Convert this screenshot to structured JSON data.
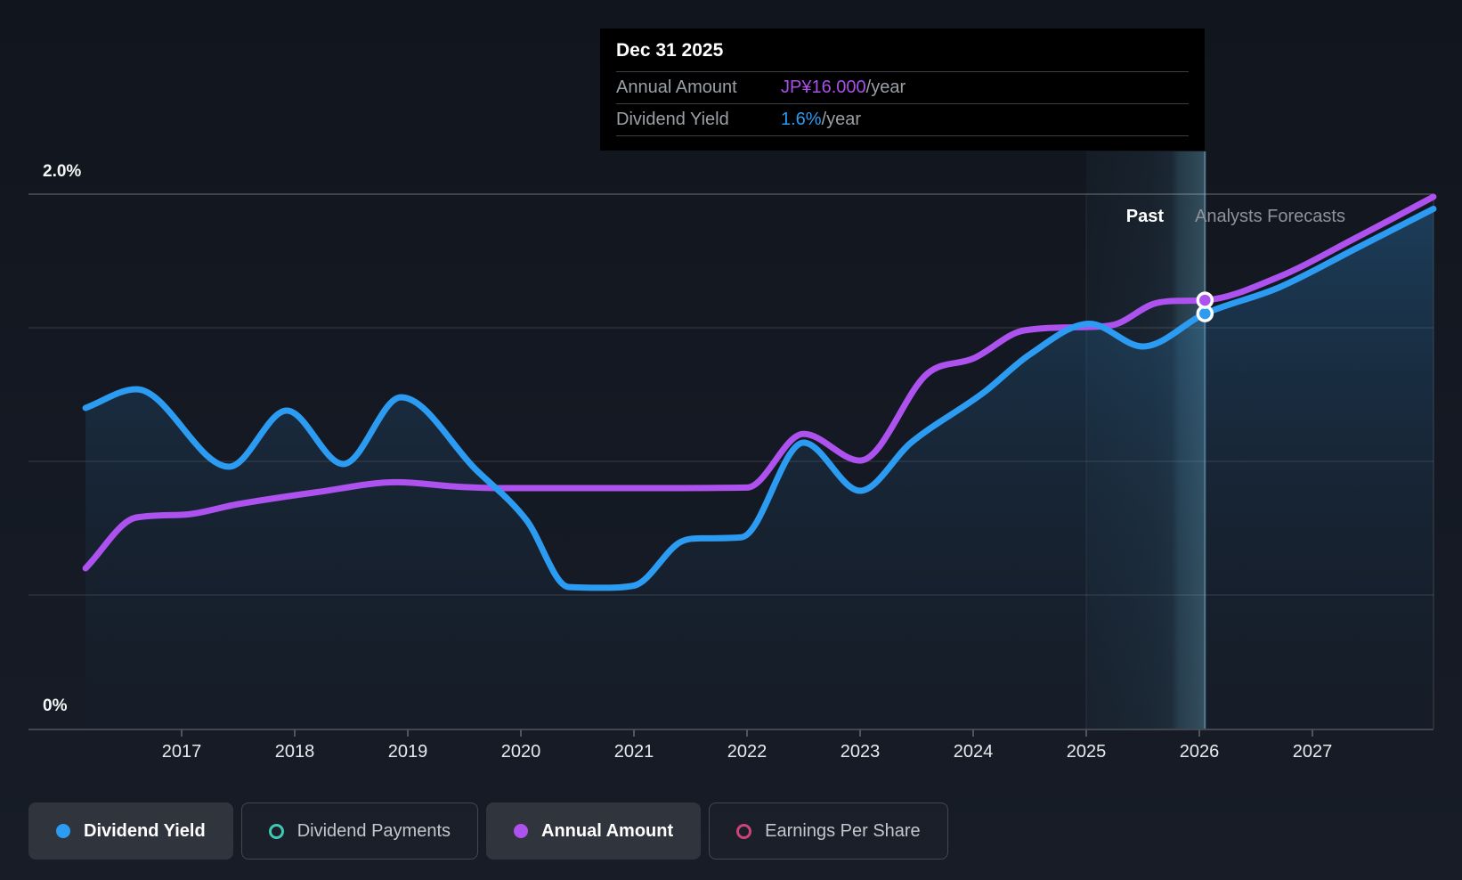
{
  "tooltip": {
    "date": "Dec 31 2025",
    "rows": [
      {
        "label": "Annual Amount",
        "value": "JP¥16.000",
        "unit": "/year",
        "color": "#a94fe9"
      },
      {
        "label": "Dividend Yield",
        "value": "1.6%",
        "unit": "/year",
        "color": "#2c9bf2"
      }
    ]
  },
  "annotations": {
    "past": "Past",
    "forecast": "Analysts Forecasts"
  },
  "y_axis": {
    "top": "2.0%",
    "bottom": "0%"
  },
  "legend": [
    {
      "label": "Dividend Yield",
      "color": "#2c9bf2",
      "variant": "filled",
      "marker": "dot"
    },
    {
      "label": "Dividend Payments",
      "color": "#3fc8b4",
      "variant": "outline",
      "marker": "ring"
    },
    {
      "label": "Annual Amount",
      "color": "#ad52ee",
      "variant": "filled",
      "marker": "dot"
    },
    {
      "label": "Earnings Per Share",
      "color": "#cc4479",
      "variant": "outline",
      "marker": "ring"
    }
  ],
  "chart_data": {
    "type": "line",
    "y_unit": "%",
    "ylim": [
      0,
      2.0
    ],
    "y_gridlines": [
      0.5,
      1.0,
      1.5,
      2.0
    ],
    "x_ticks": [
      2017,
      2018,
      2019,
      2020,
      2021,
      2022,
      2023,
      2024,
      2025,
      2026,
      2027
    ],
    "x_range": [
      2016.15,
      2028.07
    ],
    "divider_year": 2026.05,
    "divider_date": "Dec 31 2025",
    "past_band": [
      2025.0,
      2026.05
    ],
    "legend_position": "bottom",
    "series": [
      {
        "name": "Dividend Yield",
        "color": "#2c9bf2",
        "area": true,
        "points": [
          [
            2016.15,
            1.2
          ],
          [
            2016.6,
            1.27
          ],
          [
            2017.42,
            0.98
          ],
          [
            2017.93,
            1.19
          ],
          [
            2018.43,
            0.99
          ],
          [
            2018.94,
            1.24
          ],
          [
            2019.6,
            0.97
          ],
          [
            2020.05,
            0.78
          ],
          [
            2020.42,
            0.53
          ],
          [
            2020.7,
            0.527
          ],
          [
            2021.0,
            0.535
          ],
          [
            2021.42,
            0.7
          ],
          [
            2021.6,
            0.712
          ],
          [
            2021.95,
            0.716
          ],
          [
            2022.5,
            1.07
          ],
          [
            2023.0,
            0.89
          ],
          [
            2023.45,
            1.07
          ],
          [
            2024.1,
            1.26
          ],
          [
            2024.5,
            1.4
          ],
          [
            2025.03,
            1.515
          ],
          [
            2025.5,
            1.43
          ],
          [
            2026.05,
            1.553
          ],
          [
            2026.7,
            1.65
          ],
          [
            2027.4,
            1.8
          ],
          [
            2028.07,
            1.945
          ]
        ]
      },
      {
        "name": "Annual Amount",
        "color": "#ad52ee",
        "area": false,
        "points": [
          [
            2016.15,
            0.6
          ],
          [
            2016.6,
            0.79
          ],
          [
            2017.0,
            0.8
          ],
          [
            2017.5,
            0.84
          ],
          [
            2018.2,
            0.885
          ],
          [
            2018.9,
            0.922
          ],
          [
            2019.45,
            0.905
          ],
          [
            2019.8,
            0.9
          ],
          [
            2020.5,
            0.9
          ],
          [
            2021.2,
            0.9
          ],
          [
            2022.0,
            0.902
          ],
          [
            2022.5,
            1.103
          ],
          [
            2023.0,
            1.003
          ],
          [
            2023.6,
            1.33
          ],
          [
            2024.0,
            1.385
          ],
          [
            2024.45,
            1.49
          ],
          [
            2025.0,
            1.503
          ],
          [
            2025.25,
            1.512
          ],
          [
            2025.6,
            1.59
          ],
          [
            2025.85,
            1.601
          ],
          [
            2026.05,
            1.603
          ],
          [
            2026.7,
            1.69
          ],
          [
            2027.4,
            1.84
          ],
          [
            2028.07,
            1.99
          ]
        ]
      }
    ],
    "markers": [
      {
        "series": "Annual Amount",
        "year": 2026.05,
        "value": 1.603,
        "color": "#ad52ee"
      },
      {
        "series": "Dividend Yield",
        "year": 2026.05,
        "value": 1.553,
        "color": "#2c9bf2"
      }
    ]
  }
}
